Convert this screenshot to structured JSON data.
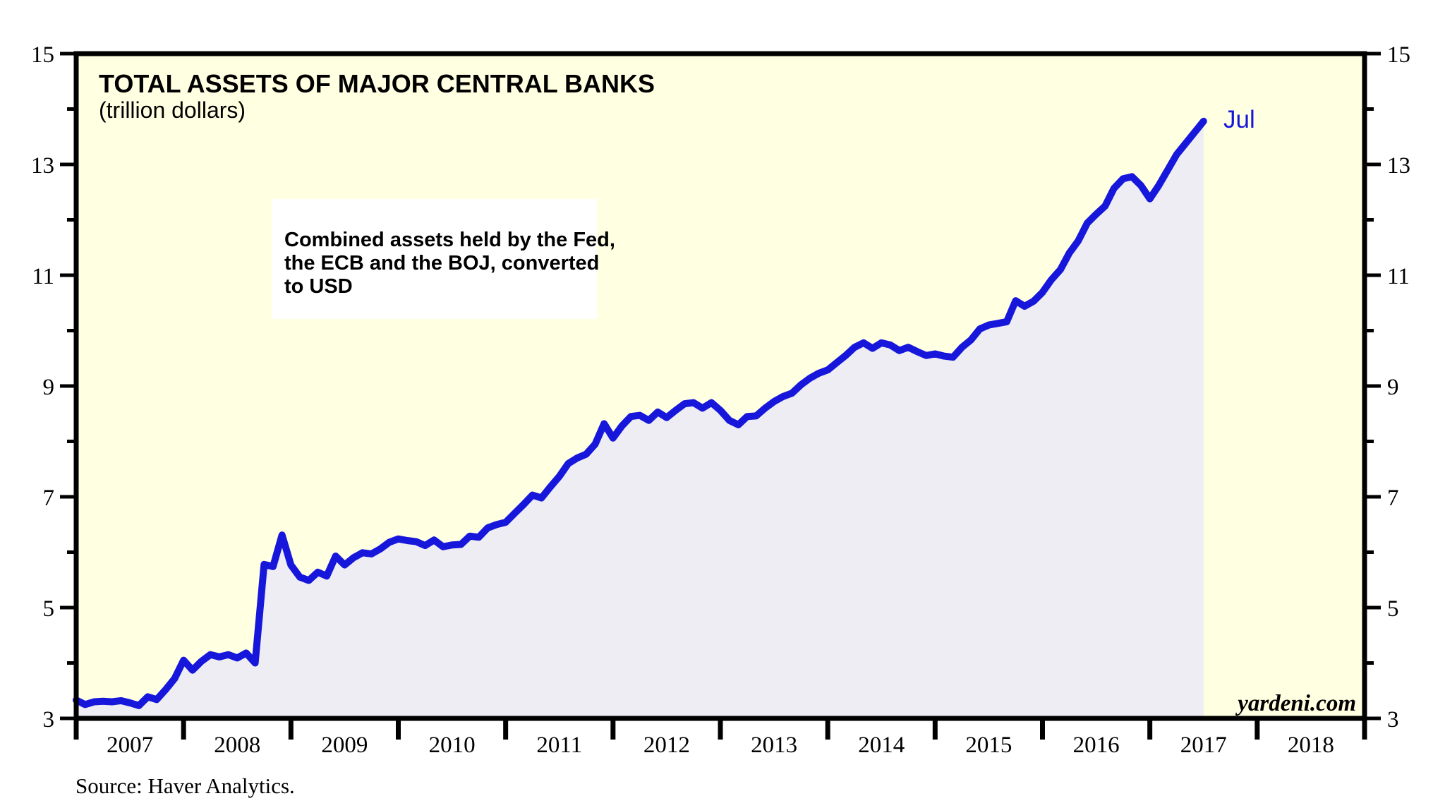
{
  "chart": {
    "title": "TOTAL ASSETS OF MAJOR CENTRAL BANKS",
    "subtitle": "(trillion dollars)",
    "annotation_lines": [
      "Combined assets held by the Fed,",
      "the ECB and the BOJ, converted",
      "to USD"
    ],
    "end_point_label": "Jul",
    "watermark": "yardeni.com",
    "source_note": "Source: Haver Analytics.",
    "colors": {
      "plot_bg": "#FFFFE1",
      "area_fill": "#EDEDF3",
      "line": "#1717DC",
      "axis": "#000000",
      "annotation_bg": "#FFFFFF",
      "end_label_text": "#1717DC"
    }
  },
  "chart_data": {
    "type": "area",
    "title": "TOTAL ASSETS OF MAJOR CENTRAL BANKS",
    "subtitle": "(trillion dollars)",
    "ylabel": "trillion dollars",
    "xlim": [
      2007,
      2019
    ],
    "ylim": [
      3,
      15
    ],
    "grid": false,
    "legend": false,
    "y_major_ticks": [
      3,
      5,
      7,
      9,
      11,
      13,
      15
    ],
    "y_minor_ticks": [
      4,
      6,
      8,
      10,
      12,
      14
    ],
    "x_tick_years": [
      2007,
      2008,
      2009,
      2010,
      2011,
      2012,
      2013,
      2014,
      2015,
      2016,
      2017,
      2018
    ],
    "series": [
      {
        "name": "Combined assets held by the Fed, the ECB and the BOJ, converted to USD",
        "frequency": "monthly",
        "start": "2007-01",
        "end": "2017-07",
        "end_label": "Jul",
        "values": [
          3.33,
          3.25,
          3.3,
          3.31,
          3.3,
          3.32,
          3.28,
          3.23,
          3.39,
          3.34,
          3.52,
          3.72,
          4.05,
          3.87,
          4.03,
          4.15,
          4.11,
          4.15,
          4.09,
          4.18,
          4.0,
          5.78,
          5.74,
          6.31,
          5.77,
          5.55,
          5.49,
          5.64,
          5.57,
          5.93,
          5.77,
          5.9,
          5.99,
          5.97,
          6.06,
          6.18,
          6.24,
          6.21,
          6.19,
          6.12,
          6.22,
          6.1,
          6.13,
          6.14,
          6.29,
          6.27,
          6.44,
          6.5,
          6.54,
          6.7,
          6.86,
          7.03,
          6.98,
          7.18,
          7.37,
          7.6,
          7.7,
          7.77,
          7.95,
          8.32,
          8.06,
          8.28,
          8.45,
          8.47,
          8.38,
          8.53,
          8.43,
          8.56,
          8.68,
          8.7,
          8.6,
          8.7,
          8.56,
          8.38,
          8.3,
          8.45,
          8.46,
          8.6,
          8.72,
          8.81,
          8.87,
          9.02,
          9.14,
          9.23,
          9.29,
          9.42,
          9.55,
          9.7,
          9.78,
          9.68,
          9.78,
          9.74,
          9.64,
          9.7,
          9.62,
          9.55,
          9.58,
          9.54,
          9.52,
          9.7,
          9.83,
          10.03,
          10.1,
          10.13,
          10.16,
          10.54,
          10.44,
          10.53,
          10.69,
          10.92,
          11.1,
          11.4,
          11.62,
          11.94,
          12.1,
          12.25,
          12.57,
          12.74,
          12.78,
          12.62,
          12.38,
          12.62,
          12.9,
          13.18,
          13.38,
          13.58,
          13.78
        ]
      }
    ]
  }
}
